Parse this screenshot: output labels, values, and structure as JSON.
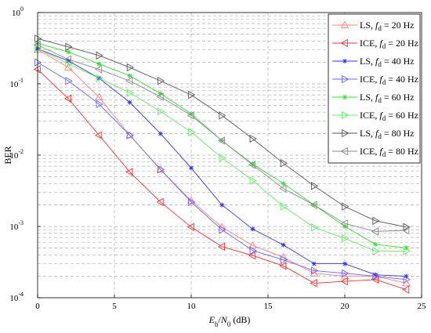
{
  "chart_data": {
    "type": "line",
    "xlabel": {
      "var": "E",
      "var_sub": "b",
      "sep": "/",
      "var2": "N",
      "var2_sub": "0",
      "unit": " (dB)"
    },
    "ylabel": "BER",
    "xlim": [
      0,
      25
    ],
    "ylim": [
      0.0001,
      1
    ],
    "yscale": "log",
    "x_ticks": [
      "0",
      "5",
      "10",
      "15",
      "20",
      "25"
    ],
    "y_ticks": [
      {
        "base": "10",
        "exp": "0"
      },
      {
        "base": "10",
        "exp": "-1"
      },
      {
        "base": "10",
        "exp": "-2"
      },
      {
        "base": "10",
        "exp": "-3"
      },
      {
        "base": "10",
        "exp": "-4"
      }
    ],
    "grid": true,
    "legend_position": "top-right",
    "series": [
      {
        "label_prefix": "LS, ",
        "label_var": "f",
        "label_sub": "d",
        "label_suffix": " = 20 Hz",
        "color": "#ff8080",
        "marker": "triangle-up",
        "x": [
          0,
          2,
          4,
          6,
          8,
          10,
          12,
          14,
          16,
          18,
          20,
          22,
          24
        ],
        "y": [
          0.3,
          0.17,
          0.065,
          0.019,
          0.0063,
          0.0023,
          0.00098,
          0.00054,
          0.00037,
          0.00022,
          0.0002,
          0.0002,
          0.00016
        ]
      },
      {
        "label_prefix": "ICE, ",
        "label_var": "f",
        "label_sub": "d",
        "label_suffix": " = 20 Hz",
        "color": "#ee3333",
        "marker": "triangle-left",
        "x": [
          0,
          2,
          4,
          6,
          8,
          10,
          12,
          14,
          16,
          18,
          20,
          22,
          24
        ],
        "y": [
          0.16,
          0.062,
          0.019,
          0.0058,
          0.0022,
          0.00098,
          0.00052,
          0.00039,
          0.00028,
          0.00016,
          0.00017,
          0.00018,
          0.00013
        ]
      },
      {
        "label_prefix": "LS, ",
        "label_var": "f",
        "label_sub": "d",
        "label_suffix": " = 40 Hz",
        "color": "#3333ee",
        "marker": "asterisk",
        "x": [
          0,
          2,
          4,
          6,
          8,
          10,
          12,
          14,
          16,
          18,
          20,
          22,
          24
        ],
        "y": [
          0.31,
          0.21,
          0.12,
          0.055,
          0.02,
          0.0066,
          0.002,
          0.00092,
          0.00055,
          0.0003,
          0.0003,
          0.00021,
          0.0002
        ]
      },
      {
        "label_prefix": "ICE, ",
        "label_var": "f",
        "label_sub": "d",
        "label_suffix": " = 40 Hz",
        "color": "#6666ff",
        "marker": "triangle-right",
        "x": [
          0,
          2,
          4,
          6,
          8,
          10,
          12,
          14,
          16,
          18,
          20,
          22,
          24
        ],
        "y": [
          0.2,
          0.11,
          0.052,
          0.019,
          0.0063,
          0.0022,
          0.0009,
          0.00046,
          0.00034,
          0.00024,
          0.00022,
          0.0002,
          0.00018
        ]
      },
      {
        "label_prefix": "LS, ",
        "label_var": "f",
        "label_sub": "d",
        "label_suffix": " = 60 Hz",
        "color": "#33dd33",
        "marker": "asterisk",
        "x": [
          0,
          2,
          4,
          6,
          8,
          10,
          12,
          14,
          16,
          18,
          20,
          22,
          24
        ],
        "y": [
          0.37,
          0.28,
          0.19,
          0.13,
          0.073,
          0.038,
          0.016,
          0.0075,
          0.004,
          0.002,
          0.001,
          0.00056,
          0.0005
        ]
      },
      {
        "label_prefix": "ICE, ",
        "label_var": "f",
        "label_sub": "d",
        "label_suffix": " = 60 Hz",
        "color": "#66ee66",
        "marker": "triangle-right",
        "x": [
          0,
          2,
          4,
          6,
          8,
          10,
          12,
          14,
          16,
          18,
          20,
          22,
          24
        ],
        "y": [
          0.31,
          0.19,
          0.12,
          0.075,
          0.041,
          0.021,
          0.0092,
          0.0044,
          0.0019,
          0.00097,
          0.00068,
          0.00045,
          0.00045
        ]
      },
      {
        "label_prefix": "LS, ",
        "label_var": "f",
        "label_sub": "d",
        "label_suffix": " = 80 Hz",
        "color": "#555555",
        "marker": "triangle-right",
        "x": [
          0,
          2,
          4,
          6,
          8,
          10,
          12,
          14,
          16,
          18,
          20,
          22,
          24
        ],
        "y": [
          0.43,
          0.33,
          0.25,
          0.17,
          0.11,
          0.07,
          0.036,
          0.017,
          0.0077,
          0.0037,
          0.0019,
          0.0012,
          0.00098
        ]
      },
      {
        "label_prefix": "ICE, ",
        "label_var": "f",
        "label_sub": "d",
        "label_suffix": " = 80 Hz",
        "color": "#888888",
        "marker": "triangle-left",
        "x": [
          0,
          2,
          4,
          6,
          8,
          10,
          12,
          14,
          16,
          18,
          20,
          22,
          24
        ],
        "y": [
          0.35,
          0.22,
          0.16,
          0.11,
          0.066,
          0.036,
          0.016,
          0.0073,
          0.0034,
          0.002,
          0.0011,
          0.00085,
          0.00088
        ]
      }
    ]
  }
}
